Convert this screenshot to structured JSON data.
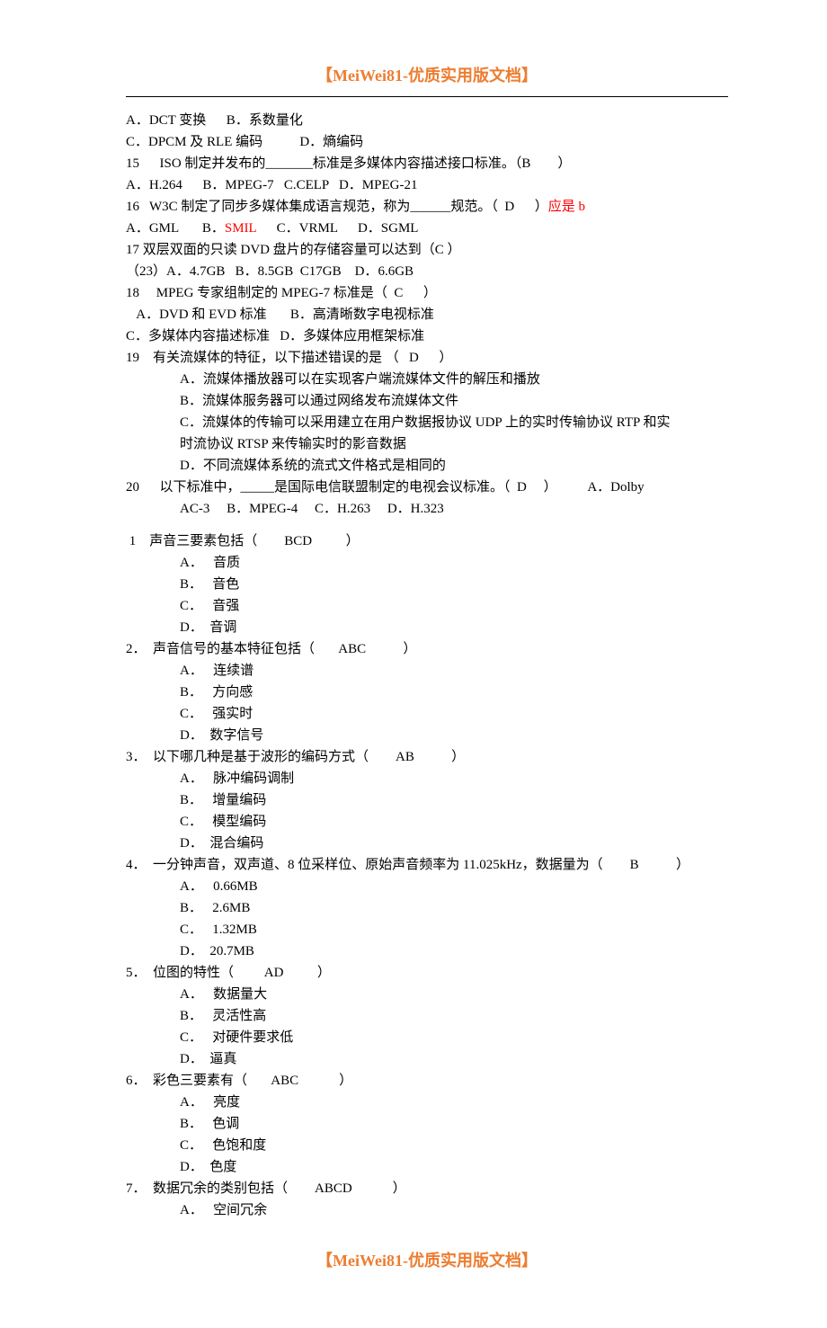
{
  "header": "【MeiWei81-优质实用版文档】",
  "footer": "【MeiWei81-优质实用版文档】",
  "colors": {
    "accent": "#ed7d31",
    "red": "#ff0000",
    "text": "#000000",
    "bg": "#ffffff"
  },
  "lines": {
    "l01": "A．DCT 变换      B．系数量化",
    "l02": "C．DPCM 及 RLE 编码           D．熵编码",
    "l03a": "15      ISO 制定并发布的_______标准是多媒体内容描述接口标准。（B        ）",
    "l04": "A．H.264      B．MPEG-7   C.CELP   D．MPEG-21",
    "l05a": "16   W3C 制定了同步多媒体集成语言规范，称为______规范。（  D      ）",
    "l05b": "应是 b",
    "l06a": "A．GML       B．",
    "l06b": "SMIL",
    "l06c": "      C．VRML      D．SGML",
    "l07": "17 双层双面的只读 DVD 盘片的存储容量可以达到（C ）",
    "l08": "（23）A．4.7GB   B．8.5GB  C17GB    D．6.6GB",
    "l09": "18     MPEG 专家组制定的 MPEG-7 标准是（  C      ）",
    "l10": "   A．DVD 和 EVD 标准       B．高清晰数字电视标准",
    "l11": "C．多媒体内容描述标准   D．多媒体应用框架标准",
    "l12": "19    有关流媒体的特征，以下描述错误的是 （   D      ）",
    "l13": "A．流媒体播放器可以在实现客户端流媒体文件的解压和播放",
    "l14": "B．流媒体服务器可以通过网络发布流媒体文件",
    "l15": "C．流媒体的传输可以采用建立在用户数据报协议 UDP 上的实时传输协议 RTP 和实",
    "l16": "时流协议 RTSP 来传输实时的影音数据",
    "l17": "D．不同流媒体系统的流式文件格式是相同的",
    "l18": "20      以下标准中，_____是国际电信联盟制定的电视会议标准。（  D     ）         A．Dolby",
    "l19": "AC-3     B．MPEG-4     C．H.263     D．H.323",
    "q1": " 1    声音三要素包括（        BCD          ）",
    "q1a": "A．   音质",
    "q1b": "B．   音色",
    "q1c": "C．   音强",
    "q1d": "D．  音调",
    "q2": "2．  声音信号的基本特征包括（       ABC           ）",
    "q2a": "A．   连续谱",
    "q2b": "B．   方向感",
    "q2c": "C．   强实时",
    "q2d": "D．  数字信号",
    "q3": "3．  以下哪几种是基于波形的编码方式（        AB           ）",
    "q3a": "A．   脉冲编码调制",
    "q3b": "B．   增量编码",
    "q3c": "C．   模型编码",
    "q3d": "D．  混合编码",
    "q4": "4．  一分钟声音，双声道、8 位采样位、原始声音频率为 11.025kHz，数据量为（        B           ）",
    "q4a": "A．   0.66MB",
    "q4b": "B．   2.6MB",
    "q4c": "C．   1.32MB",
    "q4d": "D．  20.7MB",
    "q5": "5．  位图的特性（         AD          ）",
    "q5a": "A．   数据量大",
    "q5b": "B．   灵活性高",
    "q5c": "C．   对硬件要求低",
    "q5d": "D．  逼真",
    "q6": "6．  彩色三要素有（       ABC            ）",
    "q6a": "A．   亮度",
    "q6b": "B．   色调",
    "q6c": "C．   色饱和度",
    "q6d": "D．  色度",
    "q7": "7．  数据冗余的类别包括（        ABCD            ）",
    "q7a": "A．   空间冗余"
  }
}
